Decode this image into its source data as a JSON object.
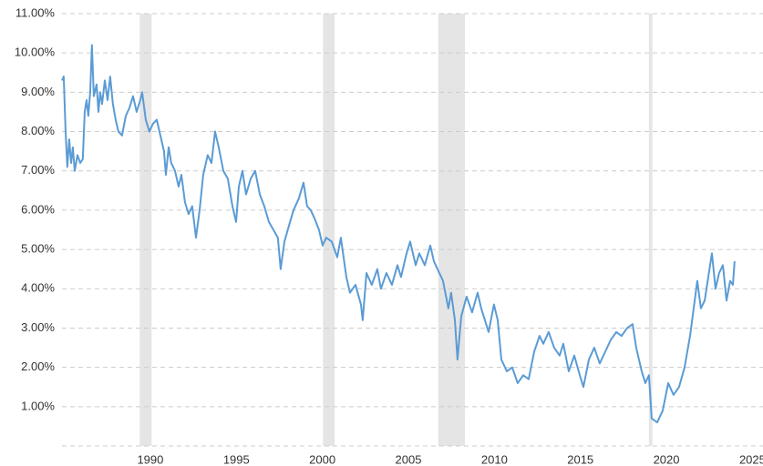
{
  "chart_data": {
    "type": "line",
    "x": [
      1986.03,
      1986.13,
      1986.24,
      1986.34,
      1986.45,
      1986.56,
      1986.66,
      1986.77,
      1986.93,
      1987.09,
      1987.24,
      1987.35,
      1987.46,
      1987.56,
      1987.67,
      1987.77,
      1987.88,
      1988.04,
      1988.15,
      1988.25,
      1988.36,
      1988.52,
      1988.68,
      1988.83,
      1988.99,
      1989.15,
      1989.31,
      1989.52,
      1989.74,
      1989.95,
      1990.16,
      1990.37,
      1990.58,
      1990.69,
      1990.9,
      1991.11,
      1991.32,
      1991.54,
      1991.75,
      1991.96,
      1992.07,
      1992.23,
      1992.38,
      1992.6,
      1992.81,
      1992.97,
      1993.18,
      1993.39,
      1993.6,
      1993.82,
      1994.03,
      1994.24,
      1994.5,
      1994.72,
      1994.93,
      1995.14,
      1995.41,
      1995.67,
      1995.94,
      1996.15,
      1996.31,
      1996.52,
      1996.73,
      1997.0,
      1997.26,
      1997.53,
      1997.79,
      1998.06,
      1998.32,
      1998.58,
      1998.74,
      1998.96,
      1999.22,
      1999.49,
      1999.8,
      2000.07,
      2000.28,
      2000.49,
      2000.7,
      2000.97,
      2001.18,
      2001.39,
      2001.71,
      2002.03,
      2002.24,
      2002.56,
      2002.77,
      2003.09,
      2003.41,
      2003.51,
      2003.73,
      2004.04,
      2004.36,
      2004.57,
      2004.89,
      2005.21,
      2005.53,
      2005.74,
      2006.06,
      2006.27,
      2006.59,
      2006.8,
      2007.12,
      2007.44,
      2007.65,
      2007.86,
      2008.18,
      2008.49,
      2008.65,
      2008.87,
      2009.02,
      2009.24,
      2009.55,
      2009.87,
      2010.19,
      2010.4,
      2010.83,
      2011.14,
      2011.36,
      2011.57,
      2011.89,
      2012.2,
      2012.52,
      2012.84,
      2013.16,
      2013.48,
      2013.79,
      2014.01,
      2014.32,
      2014.64,
      2014.96,
      2015.17,
      2015.49,
      2015.81,
      2016.13,
      2016.34,
      2016.66,
      2016.97,
      2017.29,
      2017.61,
      2017.93,
      2018.25,
      2018.56,
      2018.88,
      2019.2,
      2019.41,
      2019.73,
      2019.94,
      2020.15,
      2020.31,
      2020.63,
      2020.95,
      2021.27,
      2021.58,
      2021.9,
      2022.22,
      2022.54,
      2022.75,
      2022.96,
      2023.17,
      2023.39,
      2023.6,
      2023.81,
      2024.02,
      2024.23,
      2024.45,
      2024.66,
      2024.87,
      2025.03,
      2025.13
    ],
    "values": [
      9.3,
      9.4,
      8.0,
      7.1,
      7.8,
      7.2,
      7.6,
      7.0,
      7.4,
      7.2,
      7.3,
      8.5,
      8.8,
      8.4,
      9.0,
      10.2,
      8.9,
      9.2,
      8.5,
      9.0,
      8.7,
      9.3,
      8.8,
      9.4,
      8.7,
      8.3,
      8.0,
      7.9,
      8.4,
      8.6,
      8.9,
      8.5,
      8.8,
      9.0,
      8.3,
      8.0,
      8.2,
      8.3,
      7.9,
      7.5,
      6.9,
      7.6,
      7.2,
      7.0,
      6.6,
      6.9,
      6.2,
      5.9,
      6.1,
      5.3,
      6.0,
      6.9,
      7.4,
      7.2,
      8.0,
      7.6,
      7.0,
      6.8,
      6.1,
      5.7,
      6.6,
      7.0,
      6.4,
      6.8,
      7.0,
      6.4,
      6.1,
      5.7,
      5.5,
      5.3,
      4.5,
      5.2,
      5.6,
      6.0,
      6.3,
      6.7,
      6.1,
      6.0,
      5.8,
      5.5,
      5.1,
      5.3,
      5.2,
      4.8,
      5.3,
      4.3,
      3.9,
      4.1,
      3.6,
      3.2,
      4.4,
      4.1,
      4.5,
      4.0,
      4.4,
      4.1,
      4.6,
      4.3,
      4.9,
      5.2,
      4.6,
      4.9,
      4.6,
      5.1,
      4.7,
      4.5,
      4.2,
      3.5,
      3.9,
      3.2,
      2.2,
      3.3,
      3.8,
      3.4,
      3.9,
      3.5,
      2.9,
      3.6,
      3.2,
      2.2,
      1.9,
      2.0,
      1.6,
      1.8,
      1.7,
      2.4,
      2.8,
      2.6,
      2.9,
      2.5,
      2.3,
      2.6,
      1.9,
      2.3,
      1.8,
      1.5,
      2.2,
      2.5,
      2.1,
      2.4,
      2.7,
      2.9,
      2.8,
      3.0,
      3.1,
      2.5,
      1.9,
      1.6,
      1.8,
      0.7,
      0.6,
      0.9,
      1.6,
      1.3,
      1.5,
      2.0,
      2.8,
      3.5,
      4.2,
      3.5,
      3.7,
      4.3,
      4.9,
      4.0,
      4.4,
      4.6,
      3.7,
      4.2,
      4.1,
      4.7
    ],
    "color": "#5b9bd5",
    "recessions": [
      [
        1990.55,
        1991.24
      ],
      [
        2001.2,
        2001.88
      ],
      [
        2007.9,
        2009.45
      ],
      [
        2020.15,
        2020.35
      ]
    ],
    "recession_color": "#e5e5e5",
    "xlim": [
      1986.03,
      2026.78
    ],
    "xticks": [
      1990,
      1995,
      2000,
      2005,
      2010,
      2015,
      2020,
      2025
    ],
    "ylim": [
      0,
      11
    ],
    "yticks": [
      {
        "value": 1,
        "label": "1.00%"
      },
      {
        "value": 2,
        "label": "2.00%"
      },
      {
        "value": 3,
        "label": "3.00%"
      },
      {
        "value": 4,
        "label": "4.00%"
      },
      {
        "value": 5,
        "label": "5.00%"
      },
      {
        "value": 6,
        "label": "6.00%"
      },
      {
        "value": 7,
        "label": "7.00%"
      },
      {
        "value": 8,
        "label": "8.00%"
      },
      {
        "value": 9,
        "label": "9.00%"
      },
      {
        "value": 10,
        "label": "10.00%"
      },
      {
        "value": 11,
        "label": "11.00%"
      }
    ],
    "grid": true
  }
}
